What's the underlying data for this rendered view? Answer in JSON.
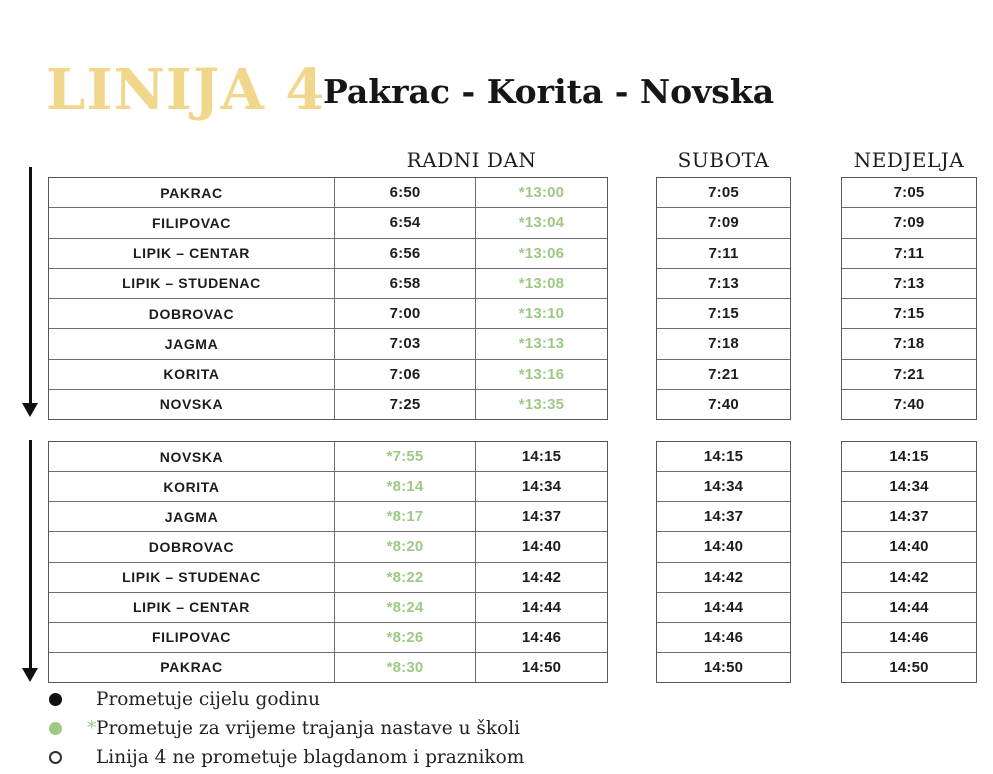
{
  "title": {
    "line_label": "LINIJA 4",
    "route": "Pakrac - Korita - Novska"
  },
  "day_headers": {
    "workday": "RADNI DAN",
    "saturday": "SUBOTA",
    "sunday": "NEDJELJA"
  },
  "colors": {
    "gold": "#F1D78C",
    "green": "#9DC985",
    "text": "#1C1C1C"
  },
  "tables": [
    {
      "name": "pakrac-to-novska",
      "school_time_index": 1,
      "rows": [
        {
          "station": "PAKRAC",
          "workday_times": [
            "6:50",
            "*13:00"
          ],
          "saturday": "7:05",
          "sunday": "7:05"
        },
        {
          "station": "FILIPOVAC",
          "workday_times": [
            "6:54",
            "*13:04"
          ],
          "saturday": "7:09",
          "sunday": "7:09"
        },
        {
          "station": "LIPIK – CENTAR",
          "workday_times": [
            "6:56",
            "*13:06"
          ],
          "saturday": "7:11",
          "sunday": "7:11"
        },
        {
          "station": "LIPIK – STUDENAC",
          "workday_times": [
            "6:58",
            "*13:08"
          ],
          "saturday": "7:13",
          "sunday": "7:13"
        },
        {
          "station": "DOBROVAC",
          "workday_times": [
            "7:00",
            "*13:10"
          ],
          "saturday": "7:15",
          "sunday": "7:15"
        },
        {
          "station": "JAGMA",
          "workday_times": [
            "7:03",
            "*13:13"
          ],
          "saturday": "7:18",
          "sunday": "7:18"
        },
        {
          "station": "KORITA",
          "workday_times": [
            "7:06",
            "*13:16"
          ],
          "saturday": "7:21",
          "sunday": "7:21"
        },
        {
          "station": "NOVSKA",
          "workday_times": [
            "7:25",
            "*13:35"
          ],
          "saturday": "7:40",
          "sunday": "7:40"
        }
      ]
    },
    {
      "name": "novska-to-pakrac",
      "school_time_index": 0,
      "rows": [
        {
          "station": "NOVSKA",
          "workday_times": [
            "*7:55",
            "14:15"
          ],
          "saturday": "14:15",
          "sunday": "14:15"
        },
        {
          "station": "KORITA",
          "workday_times": [
            "*8:14",
            "14:34"
          ],
          "saturday": "14:34",
          "sunday": "14:34"
        },
        {
          "station": "JAGMA",
          "workday_times": [
            "*8:17",
            "14:37"
          ],
          "saturday": "14:37",
          "sunday": "14:37"
        },
        {
          "station": "DOBROVAC",
          "workday_times": [
            "*8:20",
            "14:40"
          ],
          "saturday": "14:40",
          "sunday": "14:40"
        },
        {
          "station": "LIPIK – STUDENAC",
          "workday_times": [
            "*8:22",
            "14:42"
          ],
          "saturday": "14:42",
          "sunday": "14:42"
        },
        {
          "station": "LIPIK – CENTAR",
          "workday_times": [
            "*8:24",
            "14:44"
          ],
          "saturday": "14:44",
          "sunday": "14:44"
        },
        {
          "station": "FILIPOVAC",
          "workday_times": [
            "*8:26",
            "14:46"
          ],
          "saturday": "14:46",
          "sunday": "14:46"
        },
        {
          "station": "PAKRAC",
          "workday_times": [
            "*8:30",
            "14:50"
          ],
          "saturday": "14:50",
          "sunday": "14:50"
        }
      ]
    }
  ],
  "legend": [
    {
      "marker": "black-circle",
      "asterisk": "",
      "text": "Prometuje cijelu godinu"
    },
    {
      "marker": "green-circle",
      "asterisk": "*",
      "text": "Prometuje za vrijeme trajanja nastave u školi"
    },
    {
      "marker": "open-circle",
      "asterisk": "",
      "text": "Linija 4 ne prometuje blagdanom i praznikom"
    }
  ]
}
